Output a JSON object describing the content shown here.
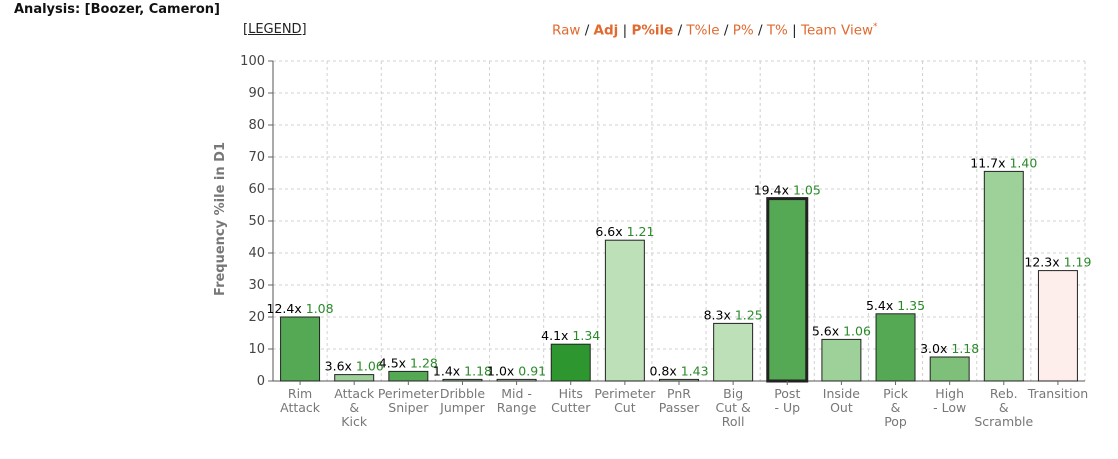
{
  "header": {
    "analysis_label": "Analysis: [Boozer, Cameron]"
  },
  "legend_link": "[LEGEND]",
  "view_links": [
    {
      "label": "Raw",
      "bold": false
    },
    {
      "label": "Adj",
      "bold": true
    },
    {
      "label": "P%ile",
      "bold": true
    },
    {
      "label": "T%le",
      "bold": false
    },
    {
      "label": "P%",
      "bold": false
    },
    {
      "label": "T%",
      "bold": false
    },
    {
      "label": "Team View",
      "bold": false
    }
  ],
  "view_separators": [
    " / ",
    " | ",
    " / ",
    " / ",
    " / ",
    " | "
  ],
  "view_footnote": "*",
  "chart_data": {
    "type": "bar",
    "ylabel": "Frequency %ile in D1",
    "ylim": [
      0,
      100
    ],
    "yticks": [
      0,
      10,
      20,
      30,
      40,
      50,
      60,
      70,
      80,
      90,
      100
    ],
    "grid": true,
    "categories": [
      [
        "Rim",
        "Attack"
      ],
      [
        "Attack",
        "&",
        "Kick"
      ],
      [
        "Perimeter",
        "Sniper"
      ],
      [
        "Dribble",
        "Jumper"
      ],
      [
        "Mid -",
        "Range"
      ],
      [
        "Hits",
        "Cutter"
      ],
      [
        "Perimeter",
        "Cut"
      ],
      [
        "PnR",
        "Passer"
      ],
      [
        "Big",
        "Cut &",
        "Roll"
      ],
      [
        "Post",
        "- Up"
      ],
      [
        "Inside",
        "Out"
      ],
      [
        "Pick",
        "&",
        "Pop"
      ],
      [
        "High",
        "- Low"
      ],
      [
        "Reb.",
        "&",
        "Scramble"
      ],
      [
        "Transition"
      ]
    ],
    "values": [
      20,
      2,
      3,
      0.5,
      0.5,
      11.5,
      44,
      0.5,
      18,
      57,
      13,
      21,
      7.5,
      65.5,
      34.5
    ],
    "multipliers": [
      "12.4x",
      "3.6x",
      "4.5x",
      "1.4x",
      "1.0x",
      "4.1x",
      "6.6x",
      "0.8x",
      "8.3x",
      "19.4x",
      "5.6x",
      "5.4x",
      "3.0x",
      "11.7x",
      "12.3x"
    ],
    "efficiencies": [
      "1.08",
      "1.06",
      "1.28",
      "1.18",
      "0.91",
      "1.34",
      "1.21",
      "1.43",
      "1.25",
      "1.05",
      "1.06",
      "1.35",
      "1.18",
      "1.40",
      "1.19"
    ],
    "bar_colors": [
      "#55a955",
      "#9ed09a",
      "#55a955",
      "#9ed09a",
      "#c5e3c0",
      "#2e962e",
      "#bde0b8",
      "#c5e3c0",
      "#bde0b8",
      "#55a955",
      "#9ed09a",
      "#55a955",
      "#7ec07a",
      "#9ed09a",
      "#fdeeec"
    ],
    "highlighted_index": 9,
    "efficiency_color": "#2a8a2a",
    "multiplier_color": "#000000"
  }
}
